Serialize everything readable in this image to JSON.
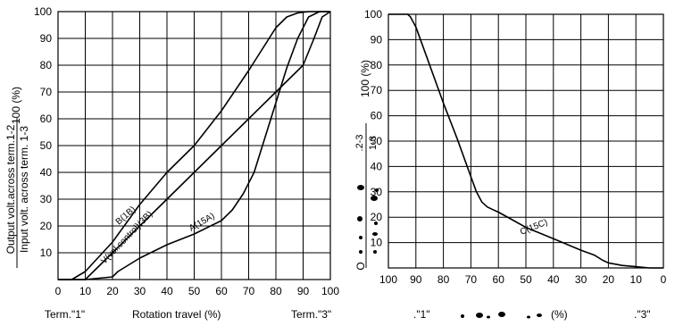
{
  "chart_data": [
    {
      "type": "line",
      "ylabel_top": "Output volt.across term.1-2",
      "ylabel_bottom": "Input volt. across term. 1-3",
      "ylabel_unit": "100 (%)",
      "xlabel": "Rotation travel (%)",
      "xlabel_left": "Term.\"1\"",
      "xlabel_right": "Term.\"3\"",
      "xlim": [
        0,
        100
      ],
      "ylim": [
        0,
        100
      ],
      "grid": true,
      "xticks": [
        "0",
        "10",
        "20",
        "30",
        "40",
        "50",
        "60",
        "70",
        "80",
        "90",
        "100"
      ],
      "yticks": [
        "10",
        "20",
        "30",
        "40",
        "50",
        "60",
        "70",
        "80",
        "90",
        "100"
      ],
      "series": [
        {
          "name": "B(1B)",
          "x": [
            0,
            5,
            10,
            20,
            30,
            40,
            50,
            60,
            70,
            80,
            84,
            88,
            92,
            96,
            100
          ],
          "y": [
            0,
            0,
            3,
            14,
            28,
            40,
            50,
            63,
            78,
            94,
            98,
            99.5,
            100,
            100,
            100
          ]
        },
        {
          "name": "V(vol.control)(3B)",
          "x": [
            0,
            10,
            20,
            30,
            40,
            50,
            60,
            70,
            80,
            90,
            94,
            97,
            100
          ],
          "y": [
            0,
            0,
            10,
            20,
            30,
            40,
            50,
            60,
            70,
            80,
            90,
            98,
            100
          ]
        },
        {
          "name": "A(15A)",
          "x": [
            0,
            10,
            20,
            22,
            30,
            40,
            50,
            60,
            64,
            68,
            72,
            76,
            80,
            84,
            88,
            92,
            96,
            100
          ],
          "y": [
            0,
            0,
            1,
            3,
            8,
            13,
            17,
            22,
            26,
            32,
            40,
            53,
            66,
            79,
            90,
            98,
            100,
            100
          ]
        }
      ],
      "annotations": [
        "B(1B)",
        "V(vol.control)(3B)",
        "A(15A)"
      ]
    },
    {
      "type": "line",
      "ylabel_unit": "100 (%)",
      "ylabel_fraction_top": ".2-3",
      "ylabel_fraction_bottom": "1-3",
      "ylabel_fragment": "O",
      "xlabel": "(%)",
      "xlabel_left": ".\"1\"",
      "xlabel_right": ".\"3\"",
      "xlim": [
        100,
        0
      ],
      "ylim": [
        0,
        100
      ],
      "grid": true,
      "xticks": [
        "100",
        "90",
        "80",
        "70",
        "60",
        "50",
        "40",
        "30",
        "20",
        "10",
        "0"
      ],
      "yticks": [
        "10",
        "20",
        "30",
        "40",
        "50",
        "60",
        "70",
        "80",
        "90",
        "100"
      ],
      "series": [
        {
          "name": "C(15C)",
          "x": [
            100,
            93,
            92,
            90,
            85,
            80,
            75,
            70,
            68,
            66,
            64,
            62,
            60,
            55,
            50,
            40,
            30,
            25,
            22,
            20,
            15,
            10,
            5,
            0
          ],
          "y": [
            100,
            100,
            99,
            95,
            80,
            65,
            51,
            36,
            30,
            26,
            24,
            23,
            22,
            19,
            16,
            11.5,
            7,
            5,
            3,
            2,
            1,
            0.5,
            0,
            0
          ]
        }
      ],
      "annotations": [
        "C(15C)"
      ]
    }
  ]
}
